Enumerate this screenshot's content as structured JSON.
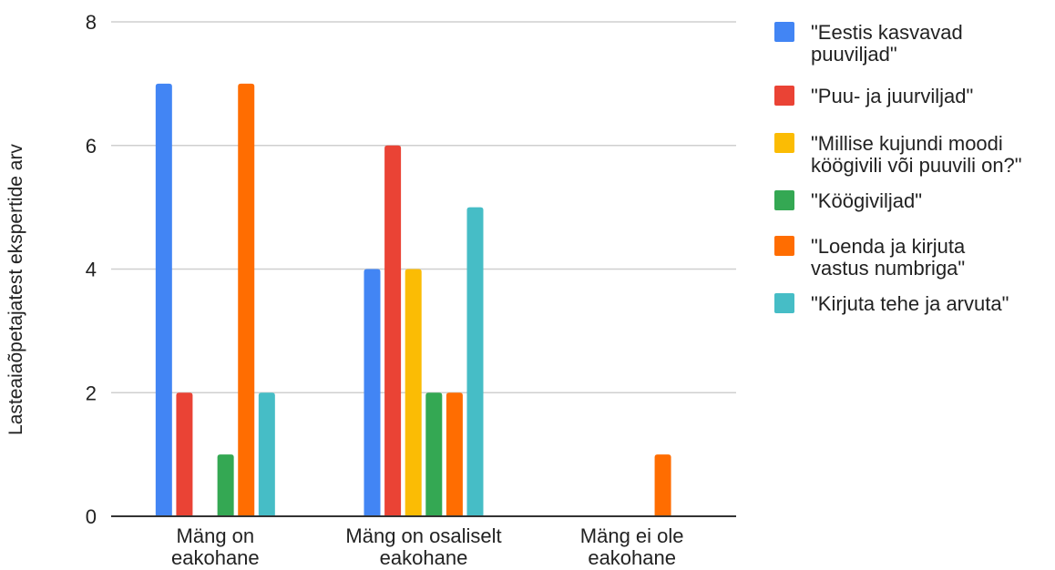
{
  "chart_data": {
    "type": "bar",
    "ylabel": "Lasteaiaõpetajatest ekspertide arv",
    "xlabel": "",
    "ylim": [
      0,
      8
    ],
    "yticks": [
      0,
      2,
      4,
      6,
      8
    ],
    "grid": true,
    "legend_position": "right",
    "categories": [
      [
        "Mäng on",
        "eakohane"
      ],
      [
        "Mäng on osaliselt",
        "eakohane"
      ],
      [
        "Mäng ei ole",
        "eakohane"
      ]
    ],
    "series": [
      {
        "name": [
          "\"Eestis kasvavad",
          "puuviljad\""
        ],
        "color": "#4285F4",
        "values": [
          7,
          4,
          0
        ]
      },
      {
        "name": [
          "\"Puu- ja juurviljad\""
        ],
        "color": "#EA4335",
        "values": [
          2,
          6,
          0
        ]
      },
      {
        "name": [
          "\"Millise kujundi moodi",
          "köögivili või puuvili on?\""
        ],
        "color": "#FBBC04",
        "values": [
          0,
          4,
          0
        ]
      },
      {
        "name": [
          "\"Köögiviljad\""
        ],
        "color": "#34A853",
        "values": [
          1,
          2,
          0
        ]
      },
      {
        "name": [
          "\"Loenda ja kirjuta",
          "vastus numbriga\""
        ],
        "color": "#FF6D01",
        "values": [
          7,
          2,
          1
        ]
      },
      {
        "name": [
          "\"Kirjuta tehe ja arvuta\""
        ],
        "color": "#46BDC6",
        "values": [
          2,
          5,
          0
        ]
      }
    ]
  }
}
